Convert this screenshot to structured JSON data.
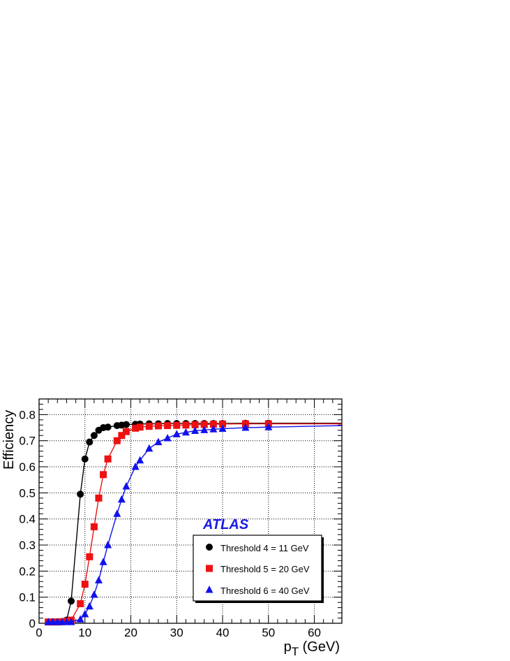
{
  "chart_data": {
    "type": "line",
    "title": "",
    "xlabel_main": "p",
    "xlabel_sub": "T",
    "xlabel_unit": " (GeV)",
    "ylabel": "Efficiency",
    "xlim": [
      0,
      66
    ],
    "ylim": [
      0,
      0.86
    ],
    "x_ticks": [
      0,
      10,
      20,
      30,
      40,
      50,
      60
    ],
    "y_ticks": [
      0,
      0.1,
      0.2,
      0.3,
      0.4,
      0.5,
      0.6,
      0.7,
      0.8
    ],
    "x_tick_labels": [
      "0",
      "10",
      "20",
      "30",
      "40",
      "50",
      "60"
    ],
    "y_tick_labels": [
      "0",
      "0.1",
      "0.2",
      "0.3",
      "0.4",
      "0.5",
      "0.6",
      "0.7",
      "0.8"
    ],
    "grid": true,
    "legend_position": "bottom-right",
    "annotation": "ATLAS",
    "annotation_color": "#1a1ae6",
    "series": [
      {
        "name": "Threshold 4 = 11 GeV",
        "marker": "circle",
        "color": "#000000",
        "x": [
          2,
          3,
          4,
          5,
          6,
          7,
          9,
          10,
          11,
          12,
          13,
          14,
          15,
          17,
          18,
          19,
          21,
          22,
          24,
          26,
          28,
          30,
          32,
          34,
          36,
          38,
          40,
          45,
          50,
          66
        ],
        "y": [
          0.005,
          0.005,
          0.005,
          0.006,
          0.012,
          0.085,
          0.495,
          0.63,
          0.695,
          0.72,
          0.74,
          0.75,
          0.752,
          0.758,
          0.76,
          0.762,
          0.763,
          0.764,
          0.765,
          0.765,
          0.766,
          0.766,
          0.766,
          0.766,
          0.766,
          0.766,
          0.766,
          0.767,
          0.767,
          0.767
        ]
      },
      {
        "name": "Threshold 5 = 20 GeV",
        "marker": "square",
        "color": "#ee1111",
        "x": [
          2,
          3,
          4,
          5,
          6,
          7,
          9,
          10,
          11,
          12,
          13,
          14,
          15,
          17,
          18,
          19,
          21,
          22,
          24,
          26,
          28,
          30,
          32,
          34,
          36,
          38,
          40,
          45,
          50,
          66
        ],
        "y": [
          0.005,
          0.005,
          0.005,
          0.006,
          0.008,
          0.012,
          0.075,
          0.15,
          0.255,
          0.37,
          0.48,
          0.57,
          0.63,
          0.7,
          0.72,
          0.735,
          0.748,
          0.752,
          0.755,
          0.757,
          0.758,
          0.759,
          0.76,
          0.761,
          0.762,
          0.763,
          0.764,
          0.765,
          0.765,
          0.765
        ]
      },
      {
        "name": "Threshold 6 = 40 GeV",
        "marker": "triangle",
        "color": "#1111ee",
        "x": [
          2,
          3,
          4,
          5,
          6,
          7,
          9,
          10,
          11,
          12,
          13,
          14,
          15,
          17,
          18,
          19,
          21,
          22,
          24,
          26,
          28,
          30,
          32,
          34,
          36,
          38,
          40,
          45,
          50,
          66
        ],
        "y": [
          0.005,
          0.005,
          0.005,
          0.005,
          0.005,
          0.005,
          0.015,
          0.035,
          0.065,
          0.11,
          0.165,
          0.235,
          0.3,
          0.42,
          0.475,
          0.525,
          0.6,
          0.625,
          0.67,
          0.695,
          0.71,
          0.725,
          0.732,
          0.738,
          0.741,
          0.744,
          0.746,
          0.75,
          0.752,
          0.758
        ]
      }
    ]
  }
}
